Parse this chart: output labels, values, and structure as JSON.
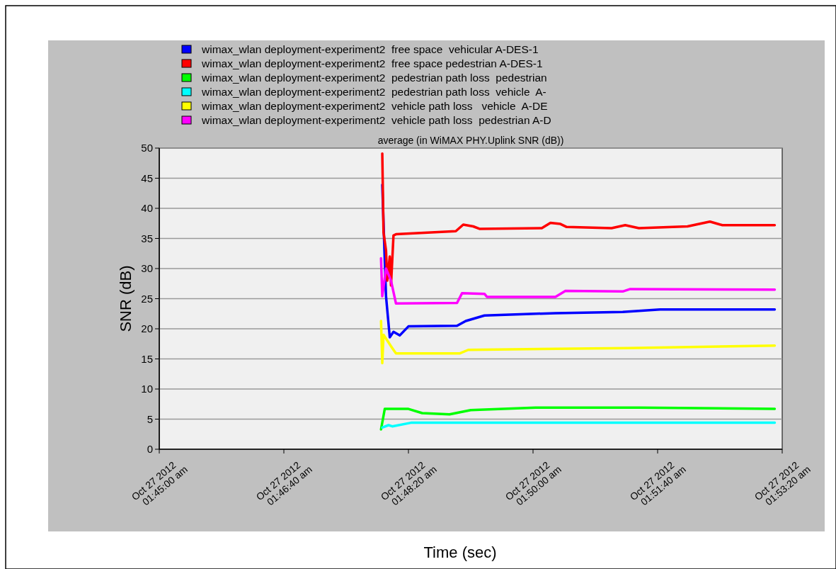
{
  "chart_data": {
    "type": "line",
    "title": "average (in WiMAX PHY.Uplink SNR (dB))",
    "xlabel": "Time (sec)",
    "ylabel": "SNR (dB)",
    "xlim": [
      "2012-10-27T01:45:00",
      "2012-10-27T01:53:20"
    ],
    "xticks": [
      {
        "value": "2012-10-27T01:45:00",
        "label": "Oct 27 2012\n01:45:00 am"
      },
      {
        "value": "2012-10-27T01:46:40",
        "label": "Oct 27 2012\n01:46:40 am"
      },
      {
        "value": "2012-10-27T01:48:20",
        "label": "Oct 27 2012\n01:48:20 am"
      },
      {
        "value": "2012-10-27T01:50:00",
        "label": "Oct 27 2012\n01:50:00 am"
      },
      {
        "value": "2012-10-27T01:51:40",
        "label": "Oct 27 2012\n01:51:40 am"
      },
      {
        "value": "2012-10-27T01:53:20",
        "label": "Oct 27 2012\n01:53:20 am"
      }
    ],
    "ylim": [
      0,
      50
    ],
    "yticks": [
      0,
      5,
      10,
      15,
      20,
      25,
      30,
      35,
      40,
      45,
      50
    ],
    "grid": "y",
    "legend": "top",
    "line_style": "solid",
    "marker": "none",
    "series": [
      {
        "name": "wimax_wlan deployment-experiment2  free space  vehicular A-DES-1",
        "color": "#0000ff",
        "x": [
          "2012-10-27T01:47:59",
          "2012-10-27T01:48:01",
          "2012-10-27T01:48:02",
          "2012-10-27T01:48:05",
          "2012-10-27T01:48:08",
          "2012-10-27T01:48:13",
          "2012-10-27T01:48:20",
          "2012-10-27T01:48:59",
          "2012-10-27T01:49:06",
          "2012-10-27T01:49:21",
          "2012-10-27T01:50:18",
          "2012-10-27T01:51:12",
          "2012-10-27T01:51:42",
          "2012-10-27T01:53:14"
        ],
        "values": [
          43.9,
          31.3,
          25.4,
          18.6,
          19.5,
          18.9,
          20.4,
          20.5,
          21.3,
          22.2,
          22.6,
          22.8,
          23.2,
          23.2
        ]
      },
      {
        "name": "wimax_wlan deployment-experiment2  free space pedestrian A-DES-1",
        "color": "#ff0000",
        "x": [
          "2012-10-27T01:47:59",
          "2012-10-27T01:48:00",
          "2012-10-27T01:48:02",
          "2012-10-27T01:48:03",
          "2012-10-27T01:48:05",
          "2012-10-27T01:48:06",
          "2012-10-27T01:48:08",
          "2012-10-27T01:48:10",
          "2012-10-27T01:48:58",
          "2012-10-27T01:49:04",
          "2012-10-27T01:49:12",
          "2012-10-27T01:49:17",
          "2012-10-27T01:50:07",
          "2012-10-27T01:50:14",
          "2012-10-27T01:50:22",
          "2012-10-27T01:50:27",
          "2012-10-27T01:51:03",
          "2012-10-27T01:51:14",
          "2012-10-27T01:51:25",
          "2012-10-27T01:52:04",
          "2012-10-27T01:52:22",
          "2012-10-27T01:52:32",
          "2012-10-27T01:53:14"
        ],
        "values": [
          49.1,
          36,
          33,
          28,
          32,
          27.2,
          35.5,
          35.7,
          36.2,
          37.3,
          37,
          36.6,
          36.7,
          37.6,
          37.4,
          36.9,
          36.7,
          37.2,
          36.7,
          37,
          37.8,
          37.2,
          37.2
        ]
      },
      {
        "name": "wimax_wlan deployment-experiment2  pedestrian path loss  pedestrian",
        "color": "#00ff00",
        "x": [
          "2012-10-27T01:47:58",
          "2012-10-27T01:48:01",
          "2012-10-27T01:48:20",
          "2012-10-27T01:48:31",
          "2012-10-27T01:48:53",
          "2012-10-27T01:49:10",
          "2012-10-27T01:50:02",
          "2012-10-27T01:51:25",
          "2012-10-27T01:53:14"
        ],
        "values": [
          3.3,
          6.7,
          6.7,
          6,
          5.8,
          6.5,
          6.9,
          6.9,
          6.7
        ]
      },
      {
        "name": "wimax_wlan deployment-experiment2  pedestrian path loss  vehicle  A-",
        "color": "#00ffff",
        "x": [
          "2012-10-27T01:47:59",
          "2012-10-27T01:48:04",
          "2012-10-27T01:48:07",
          "2012-10-27T01:48:22",
          "2012-10-27T01:53:14"
        ],
        "values": [
          3.6,
          4,
          3.8,
          4.4,
          4.4
        ]
      },
      {
        "name": "wimax_wlan deployment-experiment2  vehicle path loss   vehicle  A-DE",
        "color": "#ffff00",
        "x": [
          "2012-10-27T01:47:58",
          "2012-10-27T01:47:59",
          "2012-10-27T01:48:00",
          "2012-10-27T01:48:07",
          "2012-10-27T01:48:10",
          "2012-10-27T01:49:01",
          "2012-10-27T01:49:08",
          "2012-10-27T01:51:16",
          "2012-10-27T01:53:14"
        ],
        "values": [
          21.3,
          14.3,
          19,
          16.8,
          15.9,
          15.9,
          16.5,
          16.8,
          17.2
        ]
      },
      {
        "name": "wimax_wlan deployment-experiment2  vehicle path loss  pedestrian A-D",
        "color": "#ff00ff",
        "x": [
          "2012-10-27T01:47:58",
          "2012-10-27T01:47:59",
          "2012-10-27T01:48:02",
          "2012-10-27T01:48:06",
          "2012-10-27T01:48:10",
          "2012-10-27T01:48:59",
          "2012-10-27T01:49:03",
          "2012-10-27T01:49:21",
          "2012-10-27T01:49:23",
          "2012-10-27T01:50:18",
          "2012-10-27T01:50:26",
          "2012-10-27T01:51:12",
          "2012-10-27T01:51:18",
          "2012-10-27T01:53:14"
        ],
        "values": [
          31.7,
          25.4,
          30,
          28,
          24.2,
          24.3,
          25.9,
          25.8,
          25.3,
          25.3,
          26.3,
          26.2,
          26.6,
          26.5
        ]
      }
    ]
  }
}
